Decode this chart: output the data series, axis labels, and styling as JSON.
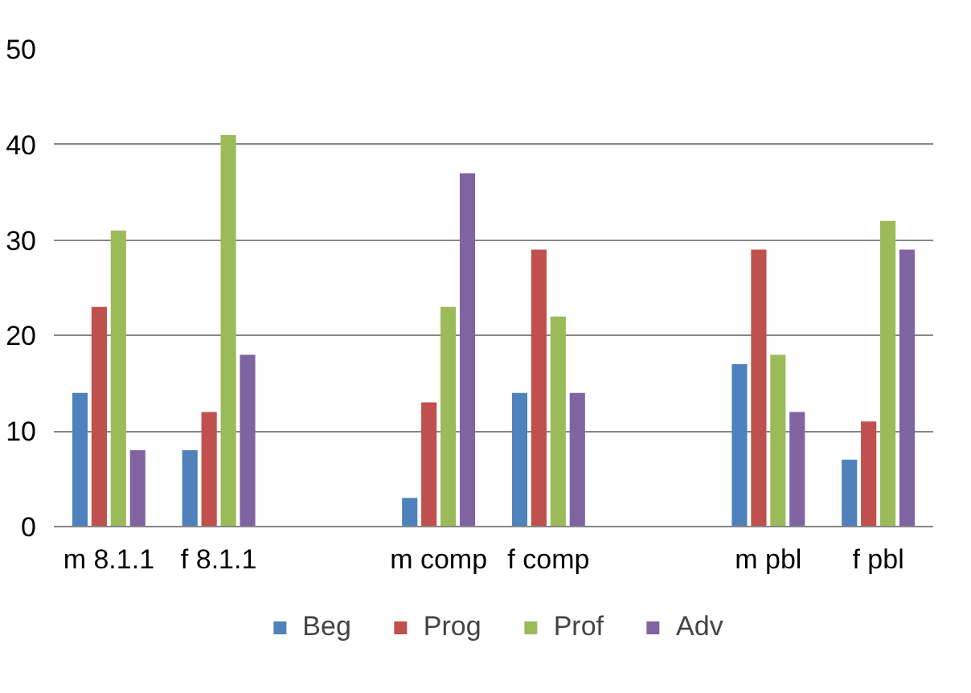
{
  "chart_data": {
    "type": "bar",
    "categories": [
      "m 8.1.1",
      "f 8.1.1",
      null,
      "m comp",
      "f comp",
      null,
      "m pbl",
      "f pbl"
    ],
    "series": [
      {
        "name": "Beg",
        "color": "#4f81bd",
        "values": [
          14,
          8,
          null,
          3,
          14,
          null,
          17,
          7
        ]
      },
      {
        "name": "Prog",
        "color": "#c0504d",
        "values": [
          23,
          12,
          null,
          13,
          29,
          null,
          29,
          11
        ]
      },
      {
        "name": "Prof",
        "color": "#9bbb59",
        "values": [
          31,
          41,
          null,
          23,
          22,
          null,
          18,
          32
        ]
      },
      {
        "name": "Adv",
        "color": "#8064a2",
        "values": [
          8,
          18,
          null,
          37,
          14,
          null,
          12,
          29
        ]
      }
    ],
    "ylim": [
      0,
      50
    ],
    "yticks": [
      0,
      10,
      20,
      30,
      40,
      50
    ],
    "grid": "y",
    "legend": "bottom"
  }
}
